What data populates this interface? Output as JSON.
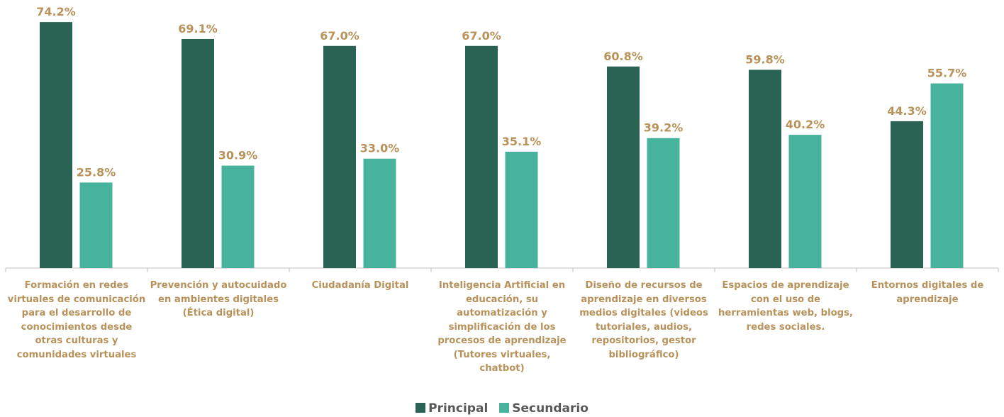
{
  "chart_data": {
    "type": "bar",
    "categories": [
      "Formación en redes virtuales de comunicación para el desarrollo de conocimientos desde otras culturas y comunidades virtuales",
      "Prevención y autocuidado en ambientes digitales (Ética digital)",
      "Ciudadanía Digital",
      "Inteligencia Artificial en educación, su automatización y simplificación de los procesos de aprendizaje (Tutores virtuales, chatbot)",
      "Diseño de recursos de aprendizaje en diversos medios digitales (videos tutoriales, audios, repositorios, gestor bibliográfico)",
      "Espacios de aprendizaje con el uso de herramientas web, blogs, redes sociales.",
      "Entornos digitales de aprendizaje"
    ],
    "series": [
      {
        "name": "Principal",
        "color": "#2a6354",
        "values": [
          74.2,
          69.1,
          67.0,
          67.0,
          60.8,
          59.8,
          44.3
        ],
        "value_labels": [
          "74.2%",
          "69.1%",
          "67.0%",
          "67.0%",
          "60.8%",
          "59.8%",
          "44.3%"
        ]
      },
      {
        "name": "Secundario",
        "color": "#47b39c",
        "values": [
          25.8,
          30.9,
          33.0,
          35.1,
          39.2,
          40.2,
          55.7
        ],
        "value_labels": [
          "25.8%",
          "30.9%",
          "33.0%",
          "35.1%",
          "39.2%",
          "40.2%",
          "55.7%"
        ]
      }
    ],
    "ylim": [
      0,
      80
    ],
    "legend": "bottom"
  }
}
